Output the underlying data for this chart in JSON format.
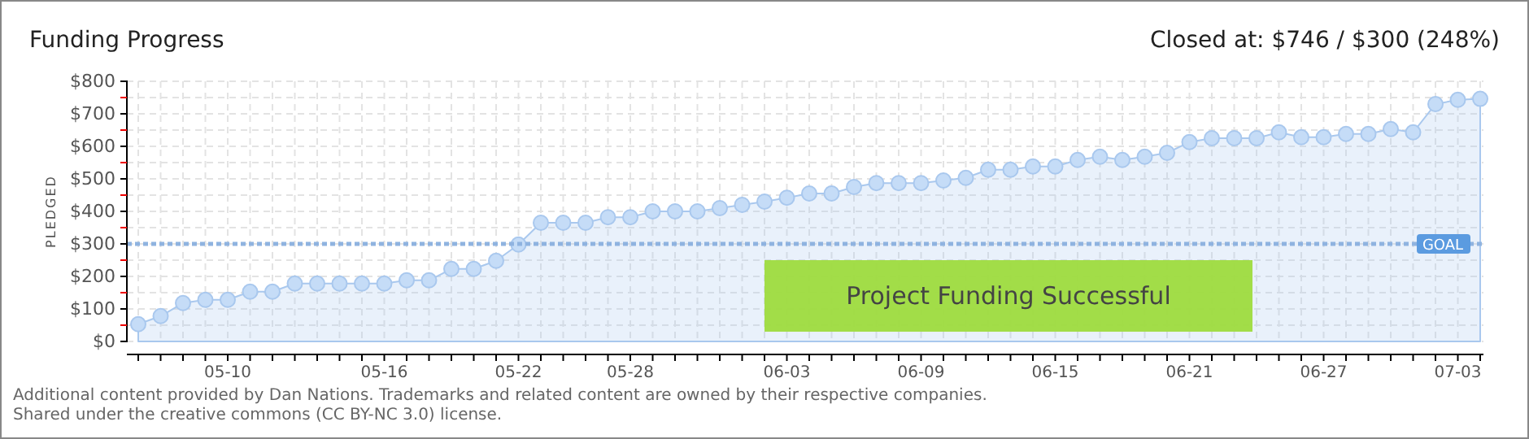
{
  "chart_data": {
    "type": "area",
    "title": "Funding Progress",
    "ylabel": "PLEDGED",
    "categories": [
      null,
      null,
      null,
      null,
      "05-10",
      null,
      null,
      null,
      null,
      null,
      null,
      "05-16",
      null,
      null,
      null,
      null,
      null,
      "05-22",
      null,
      null,
      null,
      null,
      "05-28",
      null,
      null,
      null,
      null,
      null,
      null,
      "06-03",
      null,
      null,
      null,
      null,
      null,
      "06-09",
      null,
      null,
      null,
      null,
      null,
      "06-15",
      null,
      null,
      null,
      null,
      null,
      "06-21",
      null,
      null,
      null,
      null,
      null,
      "06-27",
      null,
      null,
      null,
      null,
      null,
      "07-03",
      null
    ],
    "series": [
      {
        "color": "#a9c8ee",
        "values": [
          53,
          78,
          118,
          128,
          128,
          153,
          153,
          178,
          178,
          178,
          178,
          178,
          188,
          188,
          223,
          223,
          248,
          298,
          365,
          365,
          365,
          382,
          382,
          400,
          400,
          400,
          410,
          420,
          430,
          442,
          455,
          455,
          475,
          487,
          487,
          487,
          495,
          503,
          528,
          528,
          538,
          538,
          558,
          568,
          558,
          568,
          580,
          613,
          625,
          625,
          625,
          643,
          628,
          628,
          638,
          638,
          653,
          643,
          730,
          743,
          746
        ]
      }
    ],
    "ylim": [
      0,
      800
    ],
    "yticks": [
      {
        "value": 0,
        "label": "$0"
      },
      {
        "value": 50,
        "label": null
      },
      {
        "value": 100,
        "label": "$100"
      },
      {
        "value": 150,
        "label": null
      },
      {
        "value": 200,
        "label": "$200"
      },
      {
        "value": 250,
        "label": null
      },
      {
        "value": 300,
        "label": "$300"
      },
      {
        "value": 350,
        "label": null
      },
      {
        "value": 400,
        "label": "$400"
      },
      {
        "value": 450,
        "label": null
      },
      {
        "value": 500,
        "label": "$500"
      },
      {
        "value": 550,
        "label": null
      },
      {
        "value": 600,
        "label": "$600"
      },
      {
        "value": 650,
        "label": null
      },
      {
        "value": 700,
        "label": "$700"
      },
      {
        "value": 750,
        "label": null
      },
      {
        "value": 800,
        "label": "$800"
      }
    ],
    "grid": true,
    "marker": "circle",
    "ref_lines": [
      {
        "axis": "y",
        "value": 300,
        "label": "GOAL",
        "color": "#8fb3e0",
        "line_style": "dashed"
      }
    ],
    "annotations": [
      "Closed at: $746 / $300 (248%)",
      "Project Funding Successful",
      "Additional content provided by Dan Nations. Trademarks and related content are owned by their respective companies.",
      "Shared under the creative commons (CC BY-NC 3.0) license."
    ]
  }
}
